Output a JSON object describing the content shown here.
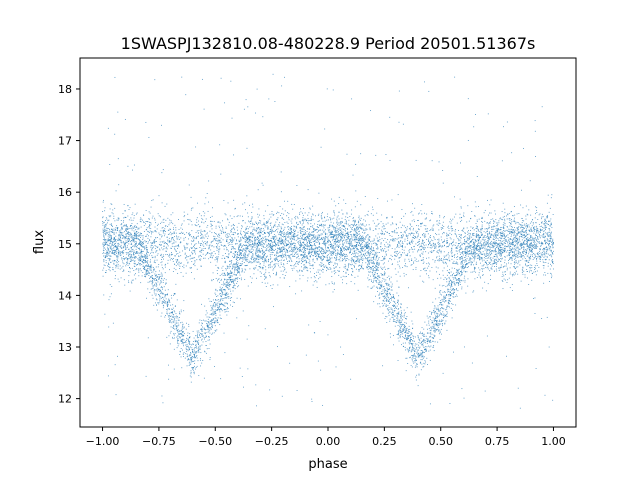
{
  "chart_data": {
    "type": "scatter",
    "title": "1SWASPJ132810.08-480228.9 Period 20501.51367s",
    "xlabel": "phase",
    "ylabel": "flux",
    "xlim": [
      -1.1,
      1.1
    ],
    "ylim": [
      11.45,
      18.6
    ],
    "x_ticks": [
      -1.0,
      -0.75,
      -0.5,
      -0.25,
      0.0,
      0.25,
      0.5,
      0.75,
      1.0
    ],
    "x_tick_labels": [
      "−1.00",
      "−0.75",
      "−0.50",
      "−0.25",
      "0.00",
      "0.25",
      "0.50",
      "0.75",
      "1.00"
    ],
    "y_ticks": [
      12,
      13,
      14,
      15,
      16,
      17,
      18
    ],
    "y_tick_labels": [
      "12",
      "13",
      "14",
      "15",
      "16",
      "17",
      "18"
    ],
    "grid": false,
    "legend": "none",
    "marker_color": "#1f77b4",
    "light_curve": {
      "phase_range": [
        -1.0,
        1.0
      ],
      "baseline_flux": 15.0,
      "baseline_scatter": 0.3,
      "eclipses": [
        {
          "center_phase": -0.6,
          "min_flux": 12.8,
          "half_width": 0.25
        },
        {
          "center_phase": 0.4,
          "min_flux": 12.8,
          "half_width": 0.25
        }
      ],
      "outlier_range": [
        11.8,
        18.3
      ]
    }
  }
}
